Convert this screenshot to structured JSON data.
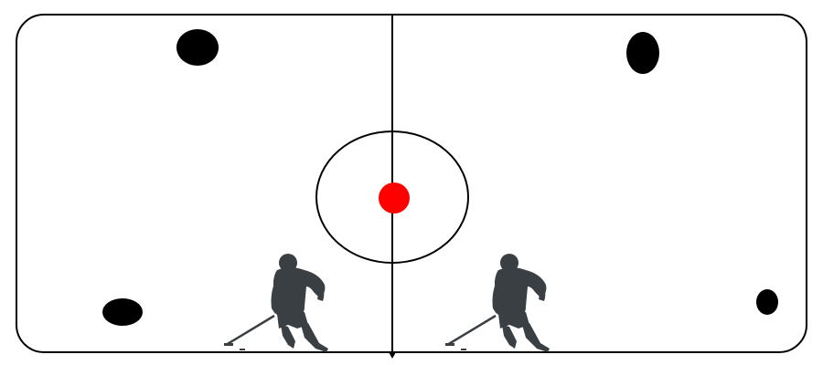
{
  "game": {
    "view": "hockey-rink-top-down",
    "colors": {
      "background": "#ffffff",
      "boards": "#000000",
      "center_line": "#000000",
      "center_circle": "#000000",
      "faceoff_dot": "#ff0000",
      "pucks": "#000000",
      "players": "#3a3f43"
    },
    "pucks": [
      {
        "name": "puck-top-left"
      },
      {
        "name": "puck-bottom-left"
      },
      {
        "name": "puck-top-right"
      },
      {
        "name": "puck-bottom-right"
      }
    ],
    "players": [
      {
        "name": "player-left",
        "icon": "hockey-player-icon"
      },
      {
        "name": "player-right",
        "icon": "hockey-player-icon"
      }
    ]
  }
}
